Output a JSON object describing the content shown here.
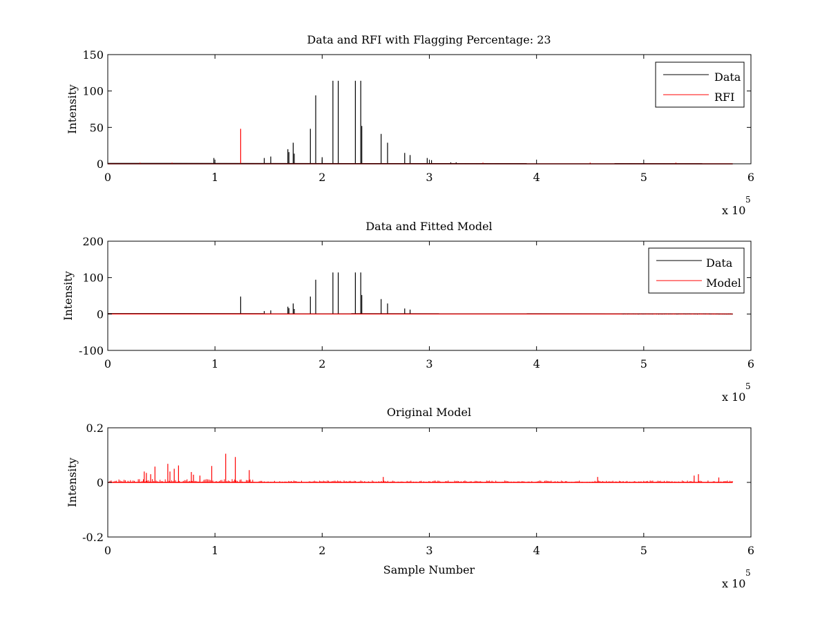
{
  "chart_data": [
    {
      "type": "line",
      "title": "Data and RFI with Flagging Percentage: 23",
      "xlabel": "",
      "ylabel": "Intensity",
      "xlim": [
        0,
        6
      ],
      "ylim": [
        0,
        150
      ],
      "x_ticks": [
        "0",
        "1",
        "2",
        "3",
        "4",
        "5",
        "6"
      ],
      "y_ticks": [
        "0",
        "50",
        "100",
        "150"
      ],
      "x_multiplier": "x 10",
      "x_exponent": "5",
      "legend": {
        "position": "top-right",
        "entries": [
          "Data",
          "RFI"
        ]
      },
      "series": [
        {
          "name": "Data",
          "color": "#000000",
          "peaks": [
            [
              0.99,
              8
            ],
            [
              1.46,
              8
            ],
            [
              1.52,
              10
            ],
            [
              1.68,
              20
            ],
            [
              1.69,
              16
            ],
            [
              1.73,
              29
            ],
            [
              1.74,
              14
            ],
            [
              1.89,
              48
            ],
            [
              1.94,
              94
            ],
            [
              2.0,
              9
            ],
            [
              2.1,
              114
            ],
            [
              2.15,
              114
            ],
            [
              2.31,
              114
            ],
            [
              2.36,
              114
            ],
            [
              2.37,
              52
            ],
            [
              2.55,
              41
            ],
            [
              2.61,
              29
            ],
            [
              2.77,
              15
            ],
            [
              2.82,
              12
            ],
            [
              2.98,
              8
            ],
            [
              3.02,
              5
            ],
            [
              3.2,
              2
            ],
            [
              3.25,
              2
            ]
          ]
        },
        {
          "name": "RFI",
          "color": "#ff0000",
          "peaks": [
            [
              1.24,
              48
            ],
            [
              0.3,
              1.5
            ],
            [
              0.6,
              1.5
            ],
            [
              3.5,
              1.5
            ],
            [
              4.5,
              1.5
            ],
            [
              5.3,
              1.5
            ]
          ]
        }
      ]
    },
    {
      "type": "line",
      "title": "Data and Fitted Model",
      "xlabel": "",
      "ylabel": "Intensity",
      "xlim": [
        0,
        6
      ],
      "ylim": [
        -100,
        200
      ],
      "x_ticks": [
        "0",
        "1",
        "2",
        "3",
        "4",
        "5",
        "6"
      ],
      "y_ticks": [
        "-100",
        "0",
        "100",
        "200"
      ],
      "x_multiplier": "x 10",
      "x_exponent": "5",
      "legend": {
        "position": "top-right",
        "entries": [
          "Data",
          "Model"
        ]
      },
      "series": [
        {
          "name": "Data",
          "color": "#000000",
          "peaks": [
            [
              1.24,
              48
            ],
            [
              1.46,
              8
            ],
            [
              1.52,
              10
            ],
            [
              1.68,
              20
            ],
            [
              1.69,
              16
            ],
            [
              1.73,
              29
            ],
            [
              1.74,
              14
            ],
            [
              1.89,
              48
            ],
            [
              1.94,
              94
            ],
            [
              2.1,
              114
            ],
            [
              2.15,
              114
            ],
            [
              2.31,
              114
            ],
            [
              2.36,
              114
            ],
            [
              2.37,
              52
            ],
            [
              2.55,
              41
            ],
            [
              2.61,
              29
            ],
            [
              2.77,
              15
            ],
            [
              2.82,
              12
            ]
          ]
        },
        {
          "name": "Model",
          "color": "#ff0000",
          "peaks": []
        }
      ]
    },
    {
      "type": "line",
      "title": "Original Model",
      "xlabel": "Sample Number",
      "ylabel": "Intensity",
      "xlim": [
        0,
        6
      ],
      "ylim": [
        -0.2,
        0.2
      ],
      "x_ticks": [
        "0",
        "1",
        "2",
        "3",
        "4",
        "5",
        "6"
      ],
      "y_ticks": [
        "-0.2",
        "0",
        "0.2"
      ],
      "x_multiplier": "x 10",
      "x_exponent": "5",
      "series": [
        {
          "name": "",
          "color": "#ff0000",
          "peaks": [
            [
              0.34,
              0.04
            ],
            [
              0.36,
              0.035
            ],
            [
              0.4,
              0.03
            ],
            [
              0.44,
              0.058
            ],
            [
              0.56,
              0.068
            ],
            [
              0.58,
              0.04
            ],
            [
              0.62,
              0.05
            ],
            [
              0.66,
              0.062
            ],
            [
              0.78,
              0.038
            ],
            [
              0.8,
              0.028
            ],
            [
              0.86,
              0.025
            ],
            [
              0.97,
              0.06
            ],
            [
              1.1,
              0.105
            ],
            [
              1.19,
              0.093
            ],
            [
              1.32,
              0.045
            ],
            [
              2.57,
              0.02
            ],
            [
              4.57,
              0.02
            ],
            [
              5.47,
              0.025
            ],
            [
              5.51,
              0.03
            ],
            [
              5.7,
              0.018
            ]
          ]
        }
      ]
    }
  ]
}
